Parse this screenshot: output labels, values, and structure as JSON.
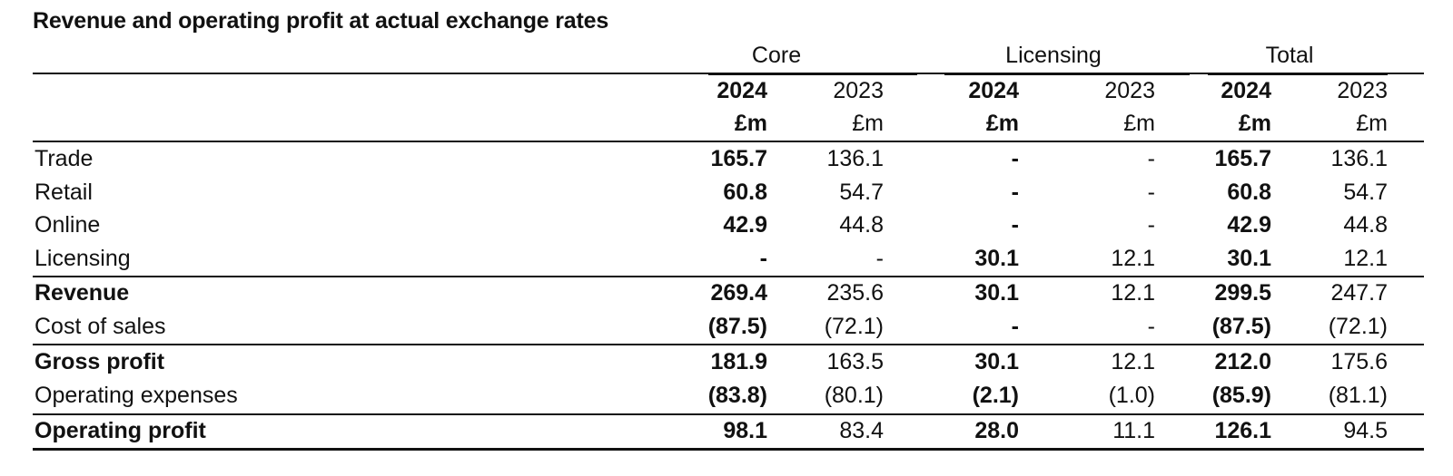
{
  "title": "Revenue and operating profit at actual exchange rates",
  "groups": [
    "Core",
    "Licensing",
    "Total"
  ],
  "years": [
    "2024",
    "2023",
    "2024",
    "2023",
    "2024",
    "2023"
  ],
  "units": [
    "£m",
    "£m",
    "£m",
    "£m",
    "£m",
    "£m"
  ],
  "rows": [
    {
      "label": "Trade",
      "values": [
        "165.7",
        "136.1",
        "-",
        "-",
        "165.7",
        "136.1"
      ]
    },
    {
      "label": "Retail",
      "values": [
        "60.8",
        "54.7",
        "-",
        "-",
        "60.8",
        "54.7"
      ]
    },
    {
      "label": "Online",
      "values": [
        "42.9",
        "44.8",
        "-",
        "-",
        "42.9",
        "44.8"
      ]
    },
    {
      "label": "Licensing",
      "values": [
        "-",
        "-",
        "30.1",
        "12.1",
        "30.1",
        "12.1"
      ]
    },
    {
      "label": "Revenue",
      "values": [
        "269.4",
        "235.6",
        "30.1",
        "12.1",
        "299.5",
        "247.7"
      ]
    },
    {
      "label": "Cost of sales",
      "values": [
        "(87.5)",
        "(72.1)",
        "-",
        "-",
        "(87.5)",
        "(72.1)"
      ]
    },
    {
      "label": "Gross profit",
      "values": [
        "181.9",
        "163.5",
        "30.1",
        "12.1",
        "212.0",
        "175.6"
      ]
    },
    {
      "label": "Operating expenses",
      "values": [
        "(83.8)",
        "(80.1)",
        "(2.1)",
        "(1.0)",
        "(85.9)",
        "(81.1)"
      ]
    },
    {
      "label": "Operating profit",
      "values": [
        "98.1",
        "83.4",
        "28.0",
        "11.1",
        "126.1",
        "94.5"
      ]
    }
  ]
}
